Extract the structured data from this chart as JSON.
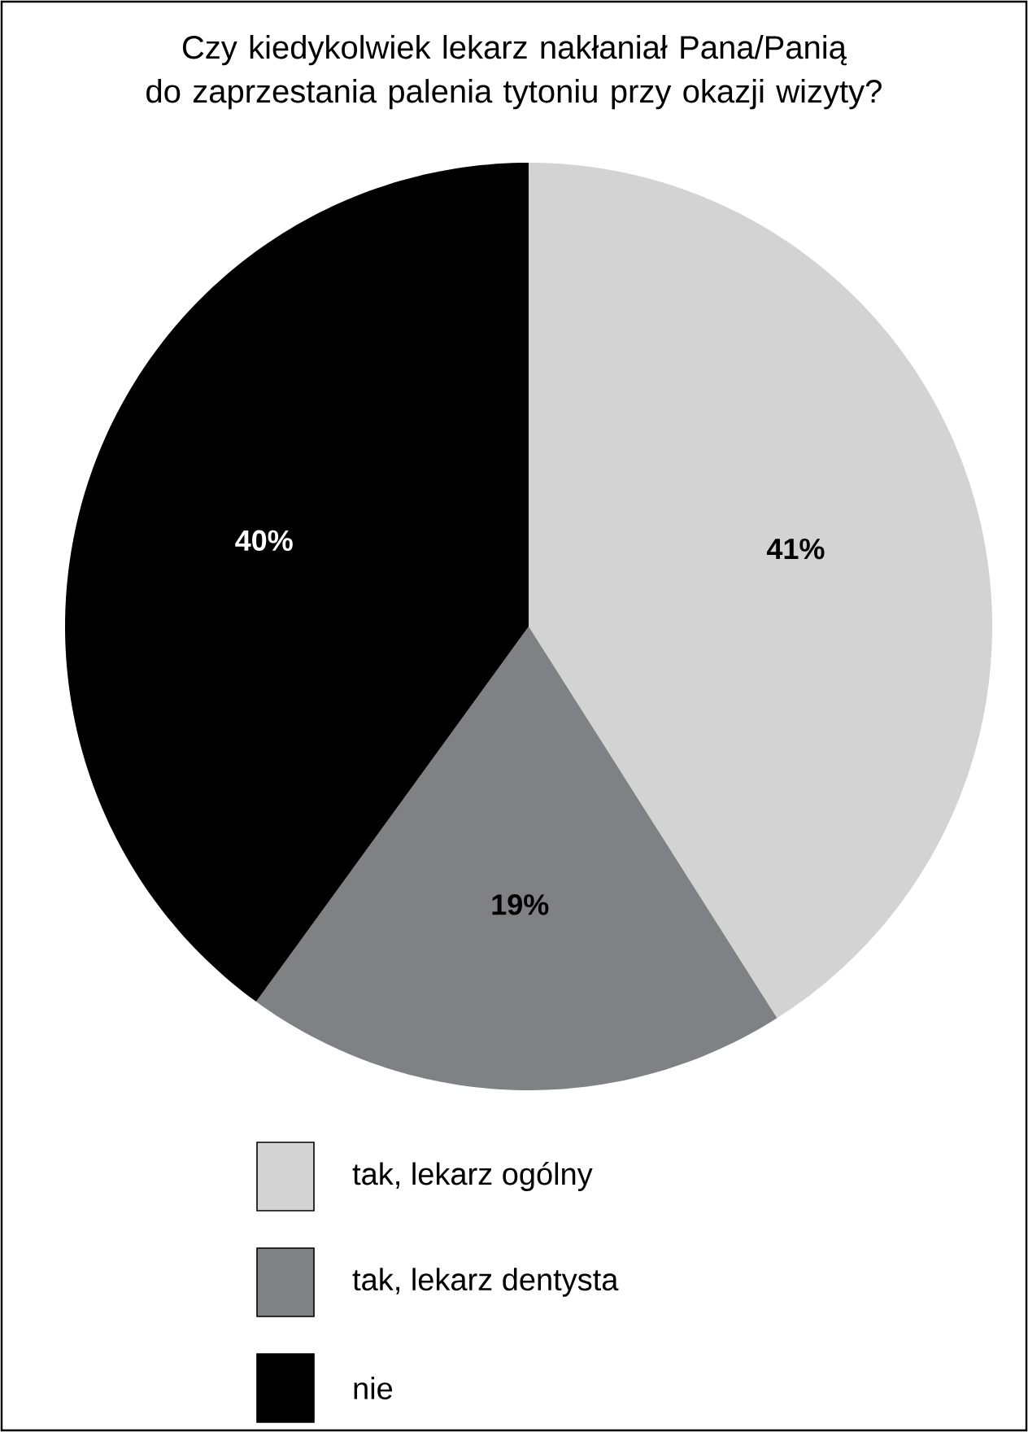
{
  "chart_data": {
    "type": "pie",
    "title": "Czy kiedykolwiek lekarz nakłaniał Pana/Panią\ndo zaprzestania palenia tytoniu przy okazji wizyty?",
    "categories": [
      "tak, lekarz ogólny",
      "tak, lekarz dentysta",
      "nie"
    ],
    "values": [
      41,
      19,
      40
    ],
    "value_labels": [
      "41%",
      "19%",
      "40%"
    ],
    "colors": [
      "#d3d3d4",
      "#808184",
      "#000000"
    ],
    "legend": "bottom"
  }
}
